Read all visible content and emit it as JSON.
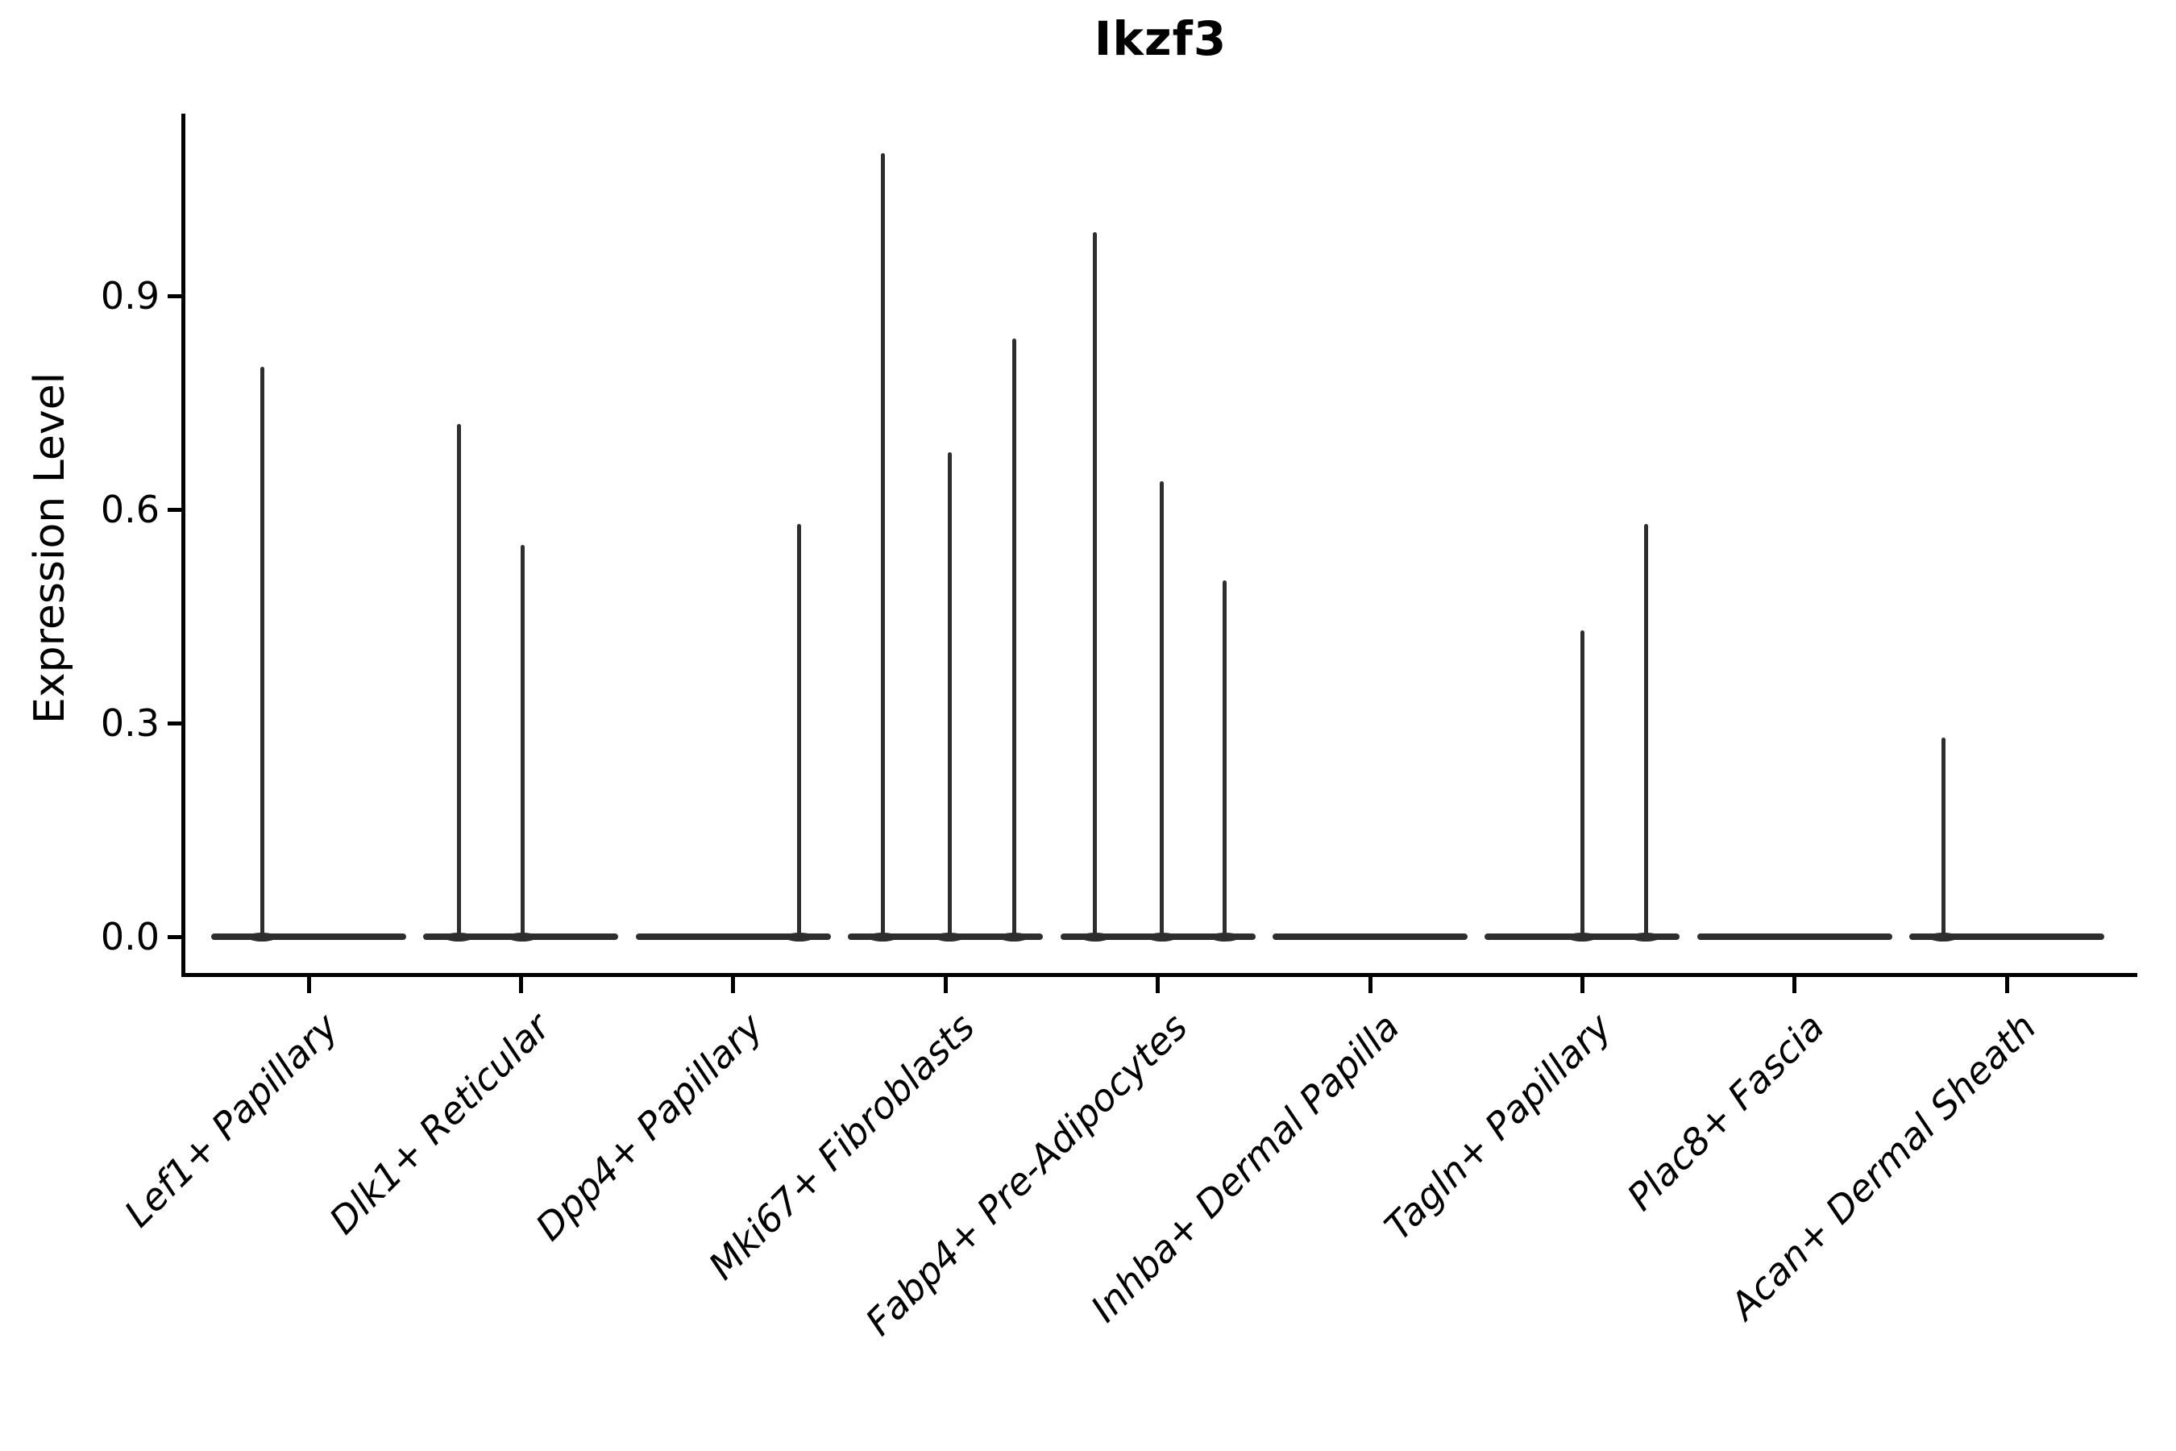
{
  "figure": {
    "background": "#ffffff"
  },
  "chart_data": {
    "type": "violin",
    "title": "Ikzf3",
    "ylabel": "Expression Level",
    "xlabel": "",
    "ylim": [
      0,
      1.16
    ],
    "yticks": [
      0.0,
      0.3,
      0.6,
      0.9
    ],
    "ytick_labels": [
      "0.0",
      "0.3",
      "0.6",
      "0.9"
    ],
    "grid": false,
    "legend": "none",
    "violin_color": "#2e2e2e",
    "axis_color": "#000000",
    "categories": [
      {
        "label": "Lef1+ Papillary",
        "spikes": [
          {
            "x_offset": -58,
            "value": 0.8
          }
        ]
      },
      {
        "label": "Dlk1+ Reticular",
        "spikes": [
          {
            "x_offset": -77,
            "value": 0.72
          },
          {
            "x_offset": 2,
            "value": 0.55
          }
        ]
      },
      {
        "label": "Dpp4+ Papillary",
        "spikes": [
          {
            "x_offset": 82,
            "value": 0.58
          }
        ]
      },
      {
        "label": "Mki67+ Fibroblasts",
        "spikes": [
          {
            "x_offset": -78,
            "value": 1.1
          },
          {
            "x_offset": 5,
            "value": 0.68
          },
          {
            "x_offset": 85,
            "value": 0.84
          }
        ]
      },
      {
        "label": "Fabp4+ Pre-Adipocytes",
        "spikes": [
          {
            "x_offset": -78,
            "value": 0.99
          },
          {
            "x_offset": 5,
            "value": 0.64
          },
          {
            "x_offset": 83,
            "value": 0.5
          }
        ]
      },
      {
        "label": "Inhba+ Dermal Papilla",
        "spikes": []
      },
      {
        "label": "Tagln+ Papillary",
        "spikes": [
          {
            "x_offset": 0,
            "value": 0.43
          },
          {
            "x_offset": 79,
            "value": 0.58
          }
        ]
      },
      {
        "label": "Plac8+ Fascia",
        "spikes": []
      },
      {
        "label": "Acan+ Dermal Sheath",
        "spikes": [
          {
            "x_offset": -79,
            "value": 0.28
          }
        ]
      }
    ]
  }
}
